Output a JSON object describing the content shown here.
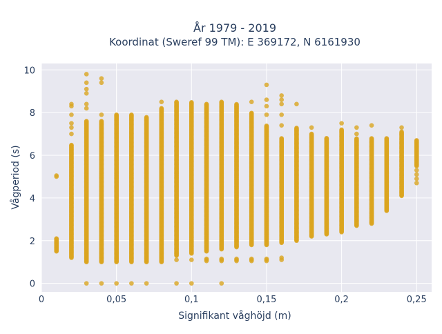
{
  "chart_data": {
    "type": "scatter",
    "title_line1": "År 1979 - 2019",
    "title_line2": "Koordinat (Sweref 99 TM): E 369172, N 6161930",
    "xlabel": "Signifikant våghöjd (m)",
    "ylabel": "Vågperiod (s)",
    "xlim": [
      0,
      0.26
    ],
    "ylim": [
      -0.4,
      10.3
    ],
    "x_ticks": [
      0,
      0.05,
      0.1,
      0.15,
      0.2,
      0.25
    ],
    "x_tick_labels": [
      "0",
      "0,05",
      "0,1",
      "0,15",
      "0,2",
      "0,25"
    ],
    "y_ticks": [
      0,
      2,
      4,
      6,
      8,
      10
    ],
    "y_tick_labels": [
      "0",
      "2",
      "4",
      "6",
      "8",
      "10"
    ],
    "grid": true,
    "colors": {
      "marker": "#DAA520",
      "plot_bg": "#E8E8F0",
      "grid": "#FFFFFF"
    },
    "columns": [
      {
        "x": 0.01,
        "ymin": 1.5,
        "ymax": 2.1,
        "extra": [
          5.0,
          5.05
        ]
      },
      {
        "x": 0.02,
        "ymin": 1.2,
        "ymax": 6.5,
        "extra": [
          7.0,
          7.3,
          7.5,
          7.9,
          8.3,
          8.4
        ]
      },
      {
        "x": 0.03,
        "ymin": 1.0,
        "ymax": 7.6,
        "extra": [
          0,
          8.2,
          8.4,
          8.9,
          9.1,
          9.4,
          9.8
        ]
      },
      {
        "x": 0.04,
        "ymin": 1.0,
        "ymax": 7.6,
        "extra": [
          0,
          7.9,
          9.4,
          9.6
        ]
      },
      {
        "x": 0.05,
        "ymin": 1.0,
        "ymax": 7.9,
        "extra": [
          0
        ]
      },
      {
        "x": 0.06,
        "ymin": 1.0,
        "ymax": 7.9,
        "extra": [
          0
        ]
      },
      {
        "x": 0.07,
        "ymin": 1.0,
        "ymax": 7.8,
        "extra": [
          0
        ]
      },
      {
        "x": 0.08,
        "ymin": 1.0,
        "ymax": 8.2,
        "extra": [
          8.5
        ]
      },
      {
        "x": 0.09,
        "ymin": 1.3,
        "ymax": 8.5,
        "extra": [
          0,
          1.1
        ]
      },
      {
        "x": 0.1,
        "ymin": 1.4,
        "ymax": 8.5,
        "extra": [
          0,
          1.1
        ]
      },
      {
        "x": 0.11,
        "ymin": 1.5,
        "ymax": 8.4,
        "extra": [
          1.05,
          1.1,
          1.15
        ]
      },
      {
        "x": 0.12,
        "ymin": 1.6,
        "ymax": 8.5,
        "extra": [
          0,
          1.05,
          1.1,
          1.15
        ]
      },
      {
        "x": 0.13,
        "ymin": 1.7,
        "ymax": 8.4,
        "extra": [
          1.05,
          1.1,
          1.15
        ]
      },
      {
        "x": 0.14,
        "ymin": 1.8,
        "ymax": 8.0,
        "extra": [
          1.05,
          1.1,
          1.15,
          8.5
        ]
      },
      {
        "x": 0.15,
        "ymin": 1.8,
        "ymax": 7.4,
        "extra": [
          1.05,
          1.1,
          1.15,
          7.9,
          8.3,
          8.6,
          9.3
        ]
      },
      {
        "x": 0.16,
        "ymin": 1.9,
        "ymax": 6.8,
        "extra": [
          1.1,
          1.2,
          7.4,
          7.9,
          8.4,
          8.6,
          8.8
        ]
      },
      {
        "x": 0.17,
        "ymin": 2.0,
        "ymax": 7.3,
        "extra": [
          8.4
        ]
      },
      {
        "x": 0.18,
        "ymin": 2.2,
        "ymax": 7.0,
        "extra": [
          7.3
        ]
      },
      {
        "x": 0.19,
        "ymin": 2.3,
        "ymax": 6.8,
        "extra": []
      },
      {
        "x": 0.2,
        "ymin": 2.4,
        "ymax": 7.2,
        "extra": [
          7.5
        ]
      },
      {
        "x": 0.21,
        "ymin": 2.7,
        "ymax": 6.8,
        "extra": [
          7.0,
          7.3
        ]
      },
      {
        "x": 0.22,
        "ymin": 2.8,
        "ymax": 6.8,
        "extra": [
          7.4
        ]
      },
      {
        "x": 0.23,
        "ymin": 3.4,
        "ymax": 6.8,
        "extra": []
      },
      {
        "x": 0.24,
        "ymin": 4.1,
        "ymax": 7.1,
        "extra": [
          7.3
        ]
      },
      {
        "x": 0.25,
        "ymin": 5.5,
        "ymax": 6.7,
        "extra": [
          4.7,
          4.9,
          5.1,
          5.3
        ]
      }
    ]
  }
}
